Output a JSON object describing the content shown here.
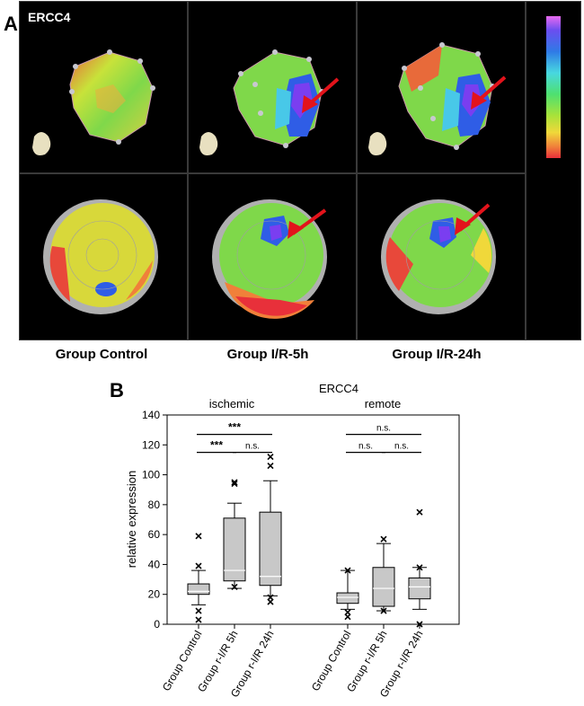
{
  "panel_a": {
    "label": "A",
    "gene_label": "ERCC4",
    "groups": [
      "Group Control",
      "Group I/R-5h",
      "Group I/R-24h"
    ]
  },
  "panel_b": {
    "label": "B"
  },
  "colors": {
    "box_fill": "#c8c8c8",
    "arrow": "#e3131b"
  },
  "chart_data": {
    "type": "box",
    "title": "ERCC4",
    "ylabel": "relative expression",
    "ylim": [
      0,
      140
    ],
    "yticks": [
      0,
      20,
      40,
      60,
      80,
      100,
      120,
      140
    ],
    "section_labels": [
      "ischemic",
      "remote"
    ],
    "categories": [
      "Group Control",
      "Group r-I/R 5h",
      "Group r-I/R 24h",
      "Group Control",
      "Group r-I/R 5h",
      "Group r-I/R 24h"
    ],
    "series": [
      {
        "name": "ischemic - Group Control",
        "q1": 20,
        "median": 22,
        "q3": 27,
        "whisker_low": 13,
        "whisker_high": 36,
        "outliers": [
          59,
          39,
          9,
          3
        ]
      },
      {
        "name": "ischemic - Group r-I/R 5h",
        "q1": 29,
        "median": 36,
        "q3": 71,
        "whisker_low": 24,
        "whisker_high": 81,
        "outliers": [
          95,
          94,
          25
        ]
      },
      {
        "name": "ischemic - Group r-I/R 24h",
        "q1": 26,
        "median": 32,
        "q3": 75,
        "whisker_low": 19,
        "whisker_high": 96,
        "outliers": [
          112,
          106,
          18,
          15
        ]
      },
      {
        "name": "remote - Group Control",
        "q1": 14,
        "median": 18,
        "q3": 21,
        "whisker_low": 10,
        "whisker_high": 36,
        "outliers": [
          36,
          8,
          5
        ]
      },
      {
        "name": "remote - Group r-I/R 5h",
        "q1": 12,
        "median": 24,
        "q3": 38,
        "whisker_low": 9,
        "whisker_high": 54,
        "outliers": [
          57,
          9
        ]
      },
      {
        "name": "remote - Group r-I/R 24h",
        "q1": 17,
        "median": 25,
        "q3": 31,
        "whisker_low": 10,
        "whisker_high": 38,
        "outliers": [
          75,
          38,
          0
        ]
      }
    ],
    "significance": [
      {
        "from": 0,
        "to": 2,
        "label": "***",
        "level": 127
      },
      {
        "from": 0,
        "to": 1,
        "label": "***",
        "level": 115
      },
      {
        "from": 1,
        "to": 2,
        "label": "n.s.",
        "level": 115
      },
      {
        "from": 3,
        "to": 5,
        "label": "n.s.",
        "level": 127
      },
      {
        "from": 3,
        "to": 4,
        "label": "n.s.",
        "level": 115
      },
      {
        "from": 4,
        "to": 5,
        "label": "n.s.",
        "level": 115
      }
    ]
  }
}
